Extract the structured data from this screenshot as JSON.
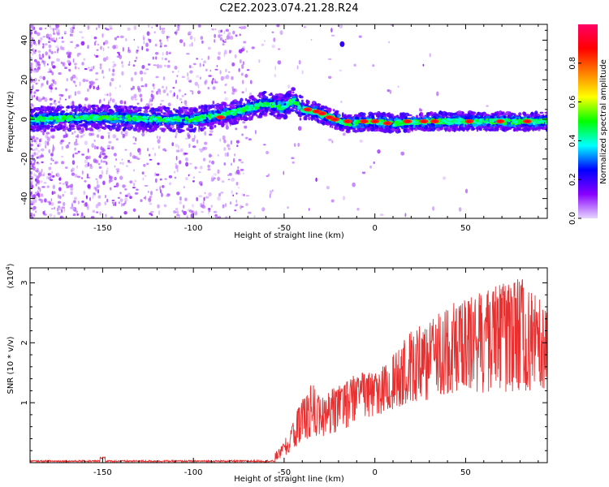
{
  "title": "C2E2.2023.074.21.28.R24",
  "chart_data": [
    {
      "type": "heatmap",
      "xlabel": "Height of straight line (km)",
      "ylabel": "Frequency (Hz)",
      "xlim": [
        -190,
        95
      ],
      "ylim": [
        -50,
        48
      ],
      "x_ticks": [
        -150,
        -100,
        -50,
        0,
        50
      ],
      "y_ticks": [
        -40,
        -20,
        0,
        20,
        40
      ],
      "grid": false,
      "ridge": [
        {
          "x": -190,
          "y": 0
        },
        {
          "x": -150,
          "y": 1
        },
        {
          "x": -120,
          "y": 0
        },
        {
          "x": -100,
          "y": 0
        },
        {
          "x": -80,
          "y": 3
        },
        {
          "x": -60,
          "y": 8
        },
        {
          "x": -50,
          "y": 6
        },
        {
          "x": -45,
          "y": 10
        },
        {
          "x": -40,
          "y": 5
        },
        {
          "x": -33,
          "y": 4
        },
        {
          "x": -25,
          "y": 1
        },
        {
          "x": -15,
          "y": -2
        },
        {
          "x": 0,
          "y": -1
        },
        {
          "x": 10,
          "y": -2
        },
        {
          "x": 30,
          "y": -1
        },
        {
          "x": 60,
          "y": -1
        },
        {
          "x": 95,
          "y": -1
        }
      ],
      "high_amplitude_blobs": [
        {
          "x": -37,
          "y": 5
        },
        {
          "x": -32,
          "y": 4
        },
        {
          "x": -29,
          "y": 3
        },
        {
          "x": -25,
          "y": 1
        },
        {
          "x": -22,
          "y": 0
        },
        {
          "x": -15,
          "y": -1
        },
        {
          "x": -6,
          "y": -1
        },
        {
          "x": 0,
          "y": -1
        },
        {
          "x": 7,
          "y": -2
        },
        {
          "x": 18,
          "y": -1
        },
        {
          "x": 27,
          "y": -1
        },
        {
          "x": 33,
          "y": -1
        },
        {
          "x": 52,
          "y": -1
        },
        {
          "x": 69,
          "y": -1
        },
        {
          "x": 84,
          "y": -1
        },
        {
          "x": -85,
          "y": 1
        },
        {
          "x": -18,
          "y": 38
        }
      ],
      "colorbar": {
        "label": "Normalized spectral amplitude",
        "range": [
          0.0,
          1.0
        ],
        "ticks": [
          "0.0",
          "0.2",
          "0.4",
          "0.6",
          "0.8"
        ],
        "colors": [
          "#e6d6ff",
          "#8800ff",
          "#0000ff",
          "#00ffff",
          "#00ff00",
          "#ffff00",
          "#ff8000",
          "#ff0000",
          "#ff0066"
        ]
      }
    },
    {
      "type": "line",
      "xlabel": "Height of straight line (km)",
      "ylabel": "SNR (10 * v/v)",
      "multiplier_base": "(x10",
      "multiplier_exp": "4",
      "multiplier_close": ")",
      "xlim": [
        -190,
        95
      ],
      "ylim": [
        0,
        3.25
      ],
      "x_ticks": [
        -150,
        -100,
        -50,
        0,
        50
      ],
      "y_ticks": [
        1,
        2,
        3
      ],
      "grid": false,
      "series_color": "#e83030",
      "envelope": {
        "x": [
          -190,
          -150,
          -100,
          -60,
          -52,
          -46,
          -40,
          -35,
          -30,
          -20,
          -10,
          0,
          10,
          20,
          30,
          40,
          50,
          60,
          70,
          80,
          95
        ],
        "low": [
          0.0,
          0.0,
          0.0,
          0.0,
          0.05,
          0.15,
          0.25,
          0.3,
          0.35,
          0.45,
          0.55,
          0.7,
          0.8,
          0.9,
          0.9,
          1.0,
          1.0,
          1.0,
          1.0,
          1.0,
          1.1
        ],
        "high": [
          0.05,
          0.08,
          0.04,
          0.05,
          0.25,
          0.6,
          1.1,
          1.4,
          1.1,
          1.3,
          1.5,
          1.5,
          1.8,
          2.2,
          2.4,
          2.6,
          2.8,
          2.9,
          3.0,
          3.1,
          2.6
        ]
      }
    }
  ]
}
